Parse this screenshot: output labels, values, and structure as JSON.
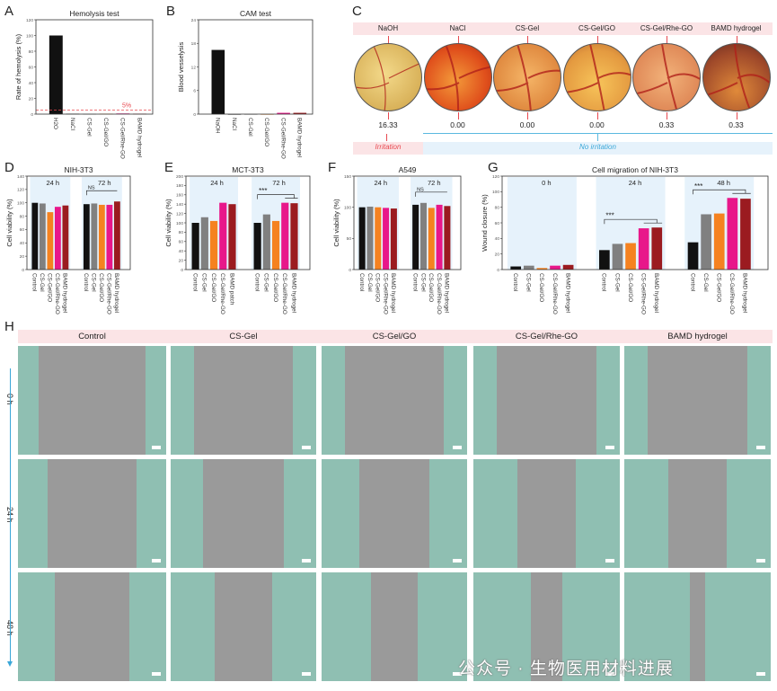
{
  "panels": {
    "A": "A",
    "B": "B",
    "C": "C",
    "D": "D",
    "E": "E",
    "F": "F",
    "G": "G",
    "H": "H"
  },
  "colors": {
    "black": "#111111",
    "gray": "#808080",
    "orange": "#f58220",
    "pink": "#e8178a",
    "darkred": "#9b1b20",
    "band": "#e6f2fb",
    "pinkband": "#fbe4e6",
    "threshold": "#e8484f"
  },
  "chart_data": [
    {
      "id": "A",
      "type": "bar",
      "title": "Hemolysis test",
      "ylabel": "Rate of hemolysis (%)",
      "ylim": [
        0,
        120
      ],
      "yticks": [
        0,
        20,
        40,
        60,
        80,
        100,
        120
      ],
      "categories": [
        "H2O",
        "NaCl",
        "CS-Gel",
        "CS-Gel/GO",
        "CS-Gel/Rhe-GO",
        "BAMD hydrogel"
      ],
      "values": [
        100,
        0.5,
        0.3,
        0.5,
        0.8,
        0.5
      ],
      "bar_colors": [
        "black",
        "black",
        "gray",
        "orange",
        "pink",
        "darkred"
      ],
      "threshold": {
        "value": 5,
        "label": "5%"
      }
    },
    {
      "id": "B",
      "type": "bar",
      "title": "CAM test",
      "ylabel": "Blood vesselysis",
      "ylim": [
        0,
        24
      ],
      "yticks": [
        0,
        6,
        12,
        18,
        24
      ],
      "categories": [
        "NaOH",
        "NaCl",
        "CS-Gel",
        "CS-Gel/GO",
        "CS-Gel/Rhe-GO",
        "BAMD hydrogel"
      ],
      "values": [
        16.33,
        0,
        0,
        0,
        0.33,
        0.33
      ],
      "bar_colors": [
        "black",
        "black",
        "gray",
        "orange",
        "pink",
        "darkred"
      ]
    },
    {
      "id": "D",
      "type": "bar",
      "title": "NIH-3T3",
      "ylabel": "Cell viability (%)",
      "ylim": [
        0,
        140
      ],
      "yticks": [
        0,
        20,
        40,
        60,
        80,
        100,
        120,
        140
      ],
      "groups": [
        {
          "label": "24 h",
          "categories": [
            "Control",
            "CS-Gel",
            "CS-Gel/GO",
            "CS-Gel/Rhe-GO",
            "BAMD hydrogel"
          ],
          "values": [
            100,
            99,
            86,
            94,
            96
          ]
        },
        {
          "label": "72 h",
          "categories": [
            "Control",
            "CS-Gel",
            "CS-Gel/GO",
            "CS-Gel/Rhe-GO",
            "BAMD hydrogel"
          ],
          "values": [
            98,
            99,
            97,
            97,
            102
          ],
          "annotation": "NS"
        }
      ],
      "bar_colors": [
        "black",
        "gray",
        "orange",
        "pink",
        "darkred"
      ]
    },
    {
      "id": "E",
      "type": "bar",
      "title": "MCT-3T3",
      "ylabel": "Cell viability (%)",
      "ylim": [
        0,
        200
      ],
      "yticks": [
        0,
        20,
        40,
        60,
        80,
        100,
        120,
        140,
        160,
        180,
        200
      ],
      "groups": [
        {
          "label": "24 h",
          "categories": [
            "Control",
            "CS-Gel",
            "CS-Gel/GO",
            "CS-Gel/Rhe-GO",
            "BAMD patch"
          ],
          "values": [
            100,
            112,
            104,
            143,
            140
          ]
        },
        {
          "label": "72 h",
          "categories": [
            "Control",
            "CS-Gel",
            "CS-Gel/GO",
            "CS-Gel/Rhe-GO",
            "BAMD hydrogel"
          ],
          "values": [
            100,
            118,
            104,
            143,
            142
          ],
          "annotation": "***"
        }
      ],
      "bar_colors": [
        "black",
        "gray",
        "orange",
        "pink",
        "darkred"
      ]
    },
    {
      "id": "F",
      "type": "bar",
      "title": "A549",
      "ylabel": "Cell viability (%)",
      "ylim": [
        0,
        150
      ],
      "yticks": [
        0,
        50,
        100,
        150
      ],
      "groups": [
        {
          "label": "24 h",
          "categories": [
            "Control",
            "CS-Gel",
            "CS-Gel/GO",
            "CS-Gel/Rhe-GO",
            "BAMD hydrogel"
          ],
          "values": [
            100,
            101,
            100,
            99,
            98
          ]
        },
        {
          "label": "72 h",
          "categories": [
            "Control",
            "CS-Gel",
            "CS-Gel/GO",
            "CS-Gel/Rhe-GO",
            "BAMD hydrogel"
          ],
          "values": [
            104,
            107,
            99,
            104,
            102
          ],
          "annotation": "NS"
        }
      ],
      "bar_colors": [
        "black",
        "gray",
        "orange",
        "pink",
        "darkred"
      ]
    },
    {
      "id": "G",
      "type": "bar",
      "title": "Cell migration of NIH-3T3",
      "ylabel": "Wound closure (%)",
      "ylim": [
        0,
        120
      ],
      "yticks": [
        0,
        20,
        40,
        60,
        80,
        100,
        120
      ],
      "groups": [
        {
          "label": "0 h",
          "categories": [
            "Control",
            "CS-Gel",
            "CS-Gel/GO",
            "CS-Gel/Rhe-GO",
            "BAMD hydrogel"
          ],
          "values": [
            4,
            5,
            2,
            5,
            6
          ]
        },
        {
          "label": "24 h",
          "categories": [
            "Control",
            "CS-Gel",
            "CS-Gel/GO",
            "CS-Gel/Rhe-GO",
            "BAMD hydrogel"
          ],
          "values": [
            25,
            33,
            34,
            53,
            54
          ],
          "annotation": "***"
        },
        {
          "label": "48 h",
          "categories": [
            "Control",
            "CS-Gel",
            "CS-Gel/GO",
            "CS-Gel/Rhe-GO",
            "BAMD hydrogel"
          ],
          "values": [
            35,
            71,
            72,
            92,
            91
          ],
          "annotation": "***"
        }
      ],
      "bar_colors": [
        "black",
        "gray",
        "orange",
        "pink",
        "darkred"
      ]
    }
  ],
  "cam": {
    "groups": [
      {
        "label": "NaOH",
        "score": "16.33"
      },
      {
        "label": "NaCl",
        "score": "0.00"
      },
      {
        "label": "CS-Gel",
        "score": "0.00"
      },
      {
        "label": "CS-Gel/GO",
        "score": "0.00"
      },
      {
        "label": "CS-Gel/Rhe-GO",
        "score": "0.33"
      },
      {
        "label": "BAMD hydrogel",
        "score": "0.33"
      }
    ],
    "irritation": "Irritation",
    "no_irritation": "No irritation"
  },
  "migration_images": {
    "columns": [
      "Control",
      "CS-Gel",
      "CS-Gel/GO",
      "CS-Gel/Rhe-GO",
      "BAMD hydrogel"
    ],
    "rows": [
      "0 h",
      "24 h",
      "48 h"
    ]
  },
  "watermark": "公众号 · 生物医用材料进展"
}
